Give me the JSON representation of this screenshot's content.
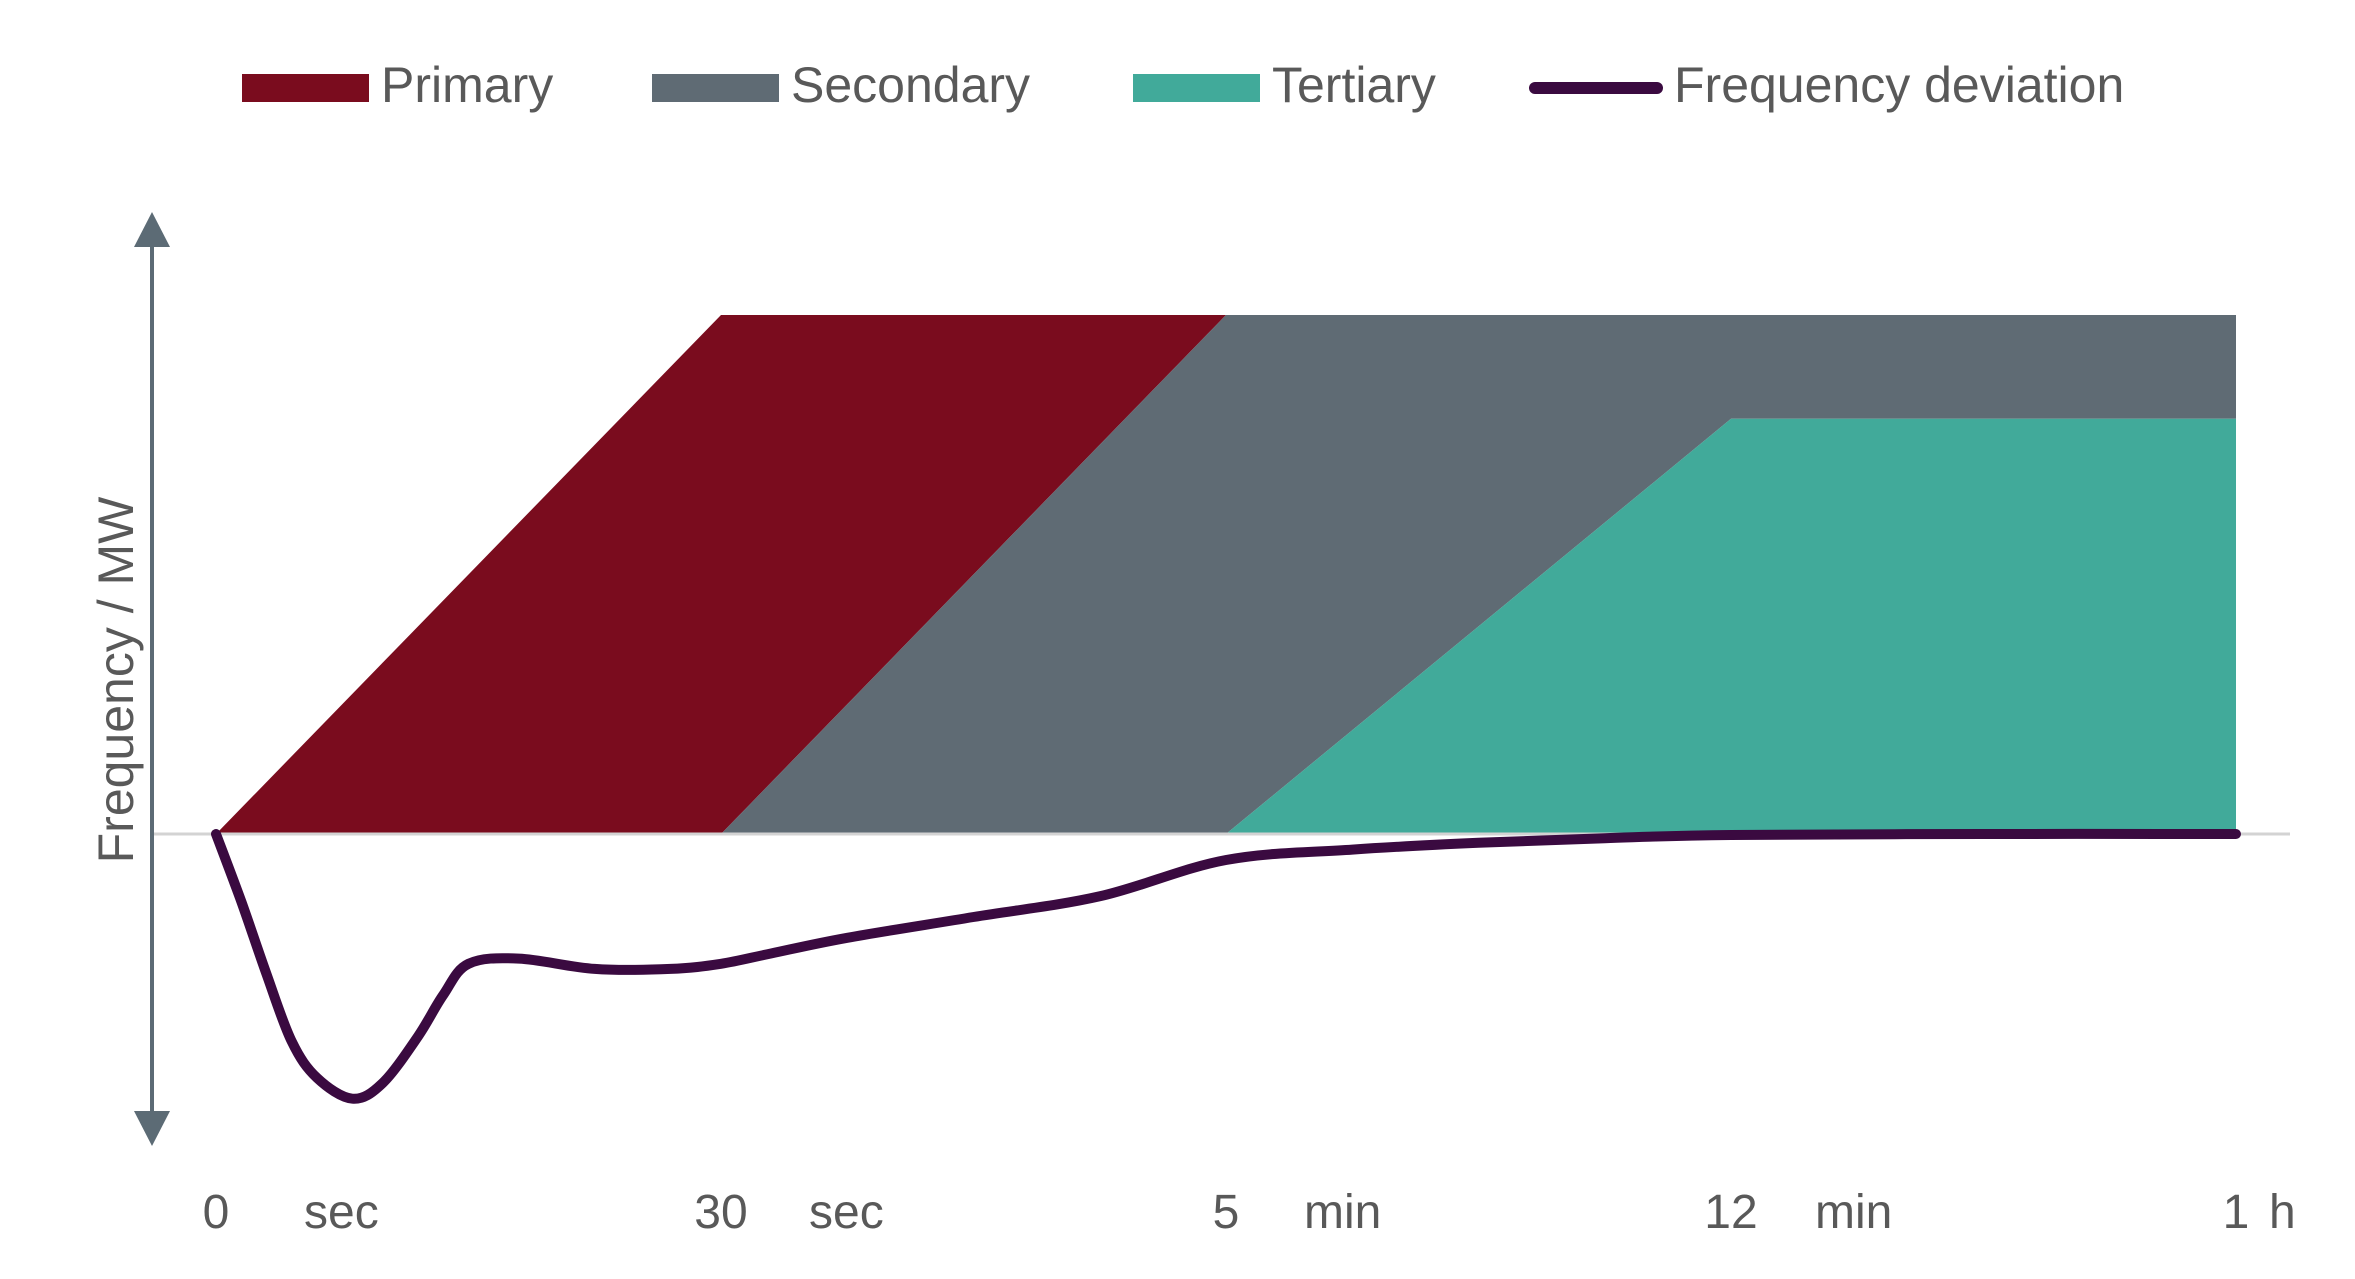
{
  "chart_data": {
    "type": "area",
    "title": "",
    "xlabel": "",
    "ylabel": "Frequency / MW",
    "x_ticks": [
      {
        "number": "0",
        "unit": "sec"
      },
      {
        "number": "30",
        "unit": "sec"
      },
      {
        "number": "5",
        "unit": "min"
      },
      {
        "number": "12",
        "unit": "min"
      },
      {
        "number": "1",
        "unit": "h"
      }
    ],
    "ylim": [
      -1,
      1
    ],
    "grid": false,
    "legend_position": "top",
    "series": [
      {
        "name": "Primary",
        "kind": "area",
        "color": "#7a0c1e",
        "polygon": [
          [
            0,
            0
          ],
          [
            1,
            1
          ],
          [
            2,
            1
          ],
          [
            1,
            0
          ]
        ]
      },
      {
        "name": "Secondary",
        "kind": "area",
        "color": "#5f6b74",
        "polygon": [
          [
            1,
            0
          ],
          [
            2,
            1
          ],
          [
            4,
            1
          ],
          [
            4,
            0.8
          ],
          [
            3,
            0.8
          ],
          [
            2,
            0
          ]
        ]
      },
      {
        "name": "Tertiary",
        "kind": "area",
        "color": "#41aa9a",
        "polygon": [
          [
            2,
            0
          ],
          [
            3,
            0.8
          ],
          [
            4,
            0.8
          ],
          [
            4,
            0
          ]
        ]
      },
      {
        "name": "Frequency deviation",
        "kind": "line",
        "color": "#3a0a40",
        "points": [
          [
            0,
            0
          ],
          [
            0.05,
            -0.13
          ],
          [
            0.1,
            -0.27
          ],
          [
            0.15,
            -0.4
          ],
          [
            0.2,
            -0.47
          ],
          [
            0.27,
            -0.51
          ],
          [
            0.33,
            -0.48
          ],
          [
            0.4,
            -0.39
          ],
          [
            0.45,
            -0.31
          ],
          [
            0.5,
            -0.25
          ],
          [
            0.6,
            -0.24
          ],
          [
            0.75,
            -0.26
          ],
          [
            0.9,
            -0.26
          ],
          [
            1.0,
            -0.25
          ],
          [
            1.1,
            -0.23
          ],
          [
            1.25,
            -0.2
          ],
          [
            1.5,
            -0.16
          ],
          [
            1.75,
            -0.12
          ],
          [
            2.0,
            -0.05
          ],
          [
            2.25,
            -0.03
          ],
          [
            2.5,
            -0.017
          ],
          [
            2.75,
            -0.008
          ],
          [
            3.0,
            -0.002
          ],
          [
            3.5,
            0
          ],
          [
            4,
            0
          ]
        ]
      }
    ]
  }
}
